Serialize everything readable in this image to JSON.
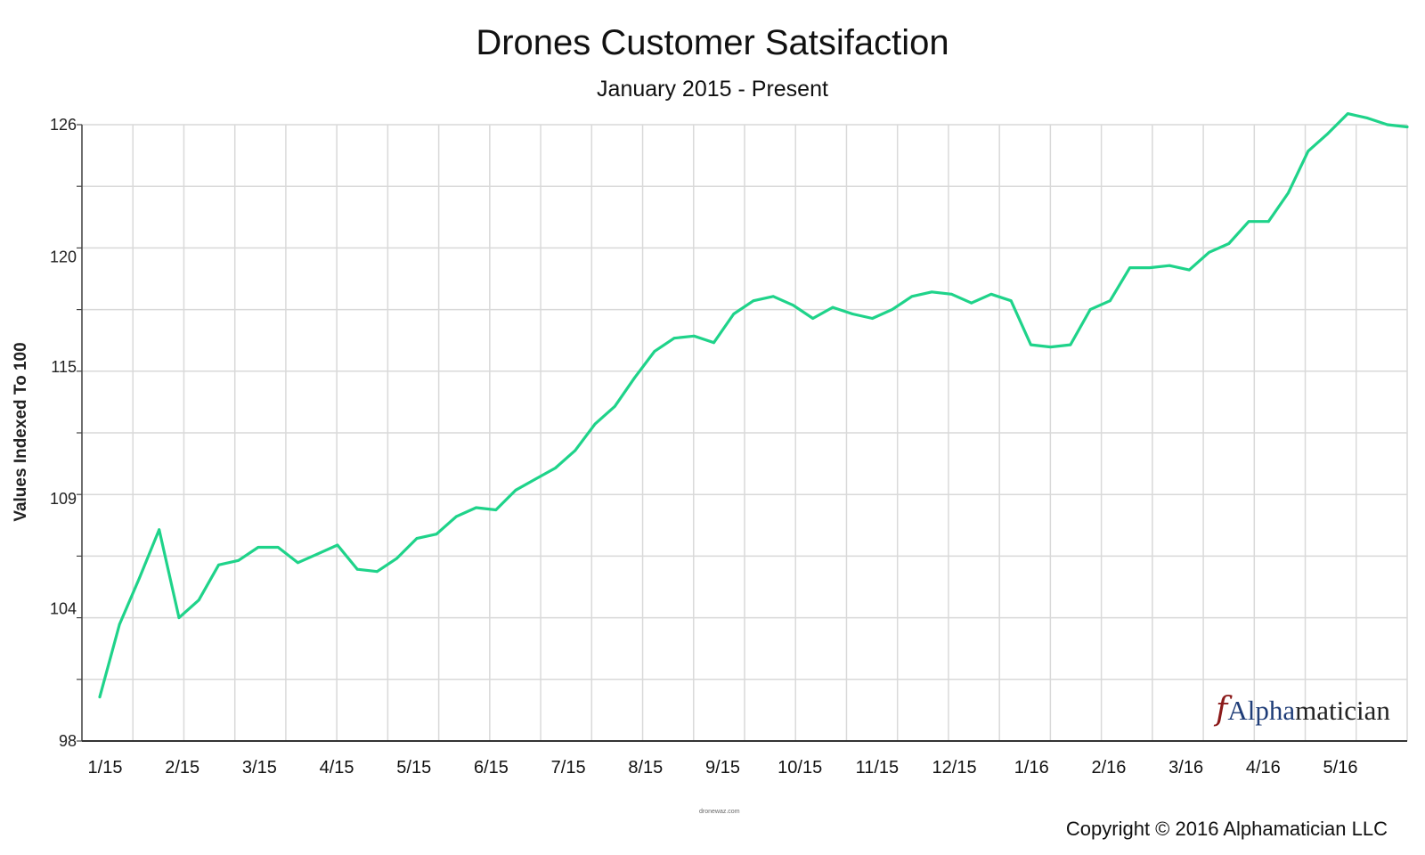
{
  "chart_data": {
    "type": "line",
    "title": "Drones Customer Satsifaction",
    "subtitle": "January 2015 - Present",
    "ylabel": "Values Indexed To 100",
    "xlabel": "",
    "ylim": [
      98,
      126
    ],
    "yticks": [
      98,
      104,
      109,
      115,
      120,
      126
    ],
    "xtick_labels": [
      "1/15",
      "2/15",
      "3/15",
      "4/15",
      "5/15",
      "6/15",
      "7/15",
      "8/15",
      "9/15",
      "10/15",
      "11/15",
      "12/15",
      "1/16",
      "2/16",
      "3/16",
      "4/16",
      "5/16"
    ],
    "grid": true,
    "line_color": "#1fd38a",
    "series": [
      {
        "values": [
          100.0,
          103.3,
          105.4,
          107.6,
          103.6,
          104.4,
          106.0,
          106.2,
          106.8,
          106.8,
          106.1,
          106.5,
          106.9,
          105.8,
          105.7,
          106.3,
          107.2,
          107.4,
          108.2,
          108.6,
          108.5,
          109.4,
          109.9,
          110.4,
          111.2,
          112.4,
          113.2,
          114.5,
          115.7,
          116.3,
          116.4,
          116.1,
          117.4,
          118.0,
          118.2,
          117.8,
          117.2,
          117.7,
          117.4,
          117.2,
          117.6,
          118.2,
          118.4,
          118.3,
          117.9,
          118.3,
          118.0,
          116.0,
          115.9,
          116.0,
          117.6,
          118.0,
          119.5,
          119.5,
          119.6,
          119.4,
          120.2,
          120.6,
          121.6,
          121.6,
          122.9,
          124.8,
          125.6,
          126.5,
          126.3,
          126.0,
          125.9
        ]
      }
    ]
  },
  "logo": {
    "mark": "𝑓",
    "alpha_text": "Alpha",
    "rest_text": "matician"
  },
  "watermark_small": "dronewaz.com",
  "copyright": "Copyright © 2016 Alphamatician LLC"
}
